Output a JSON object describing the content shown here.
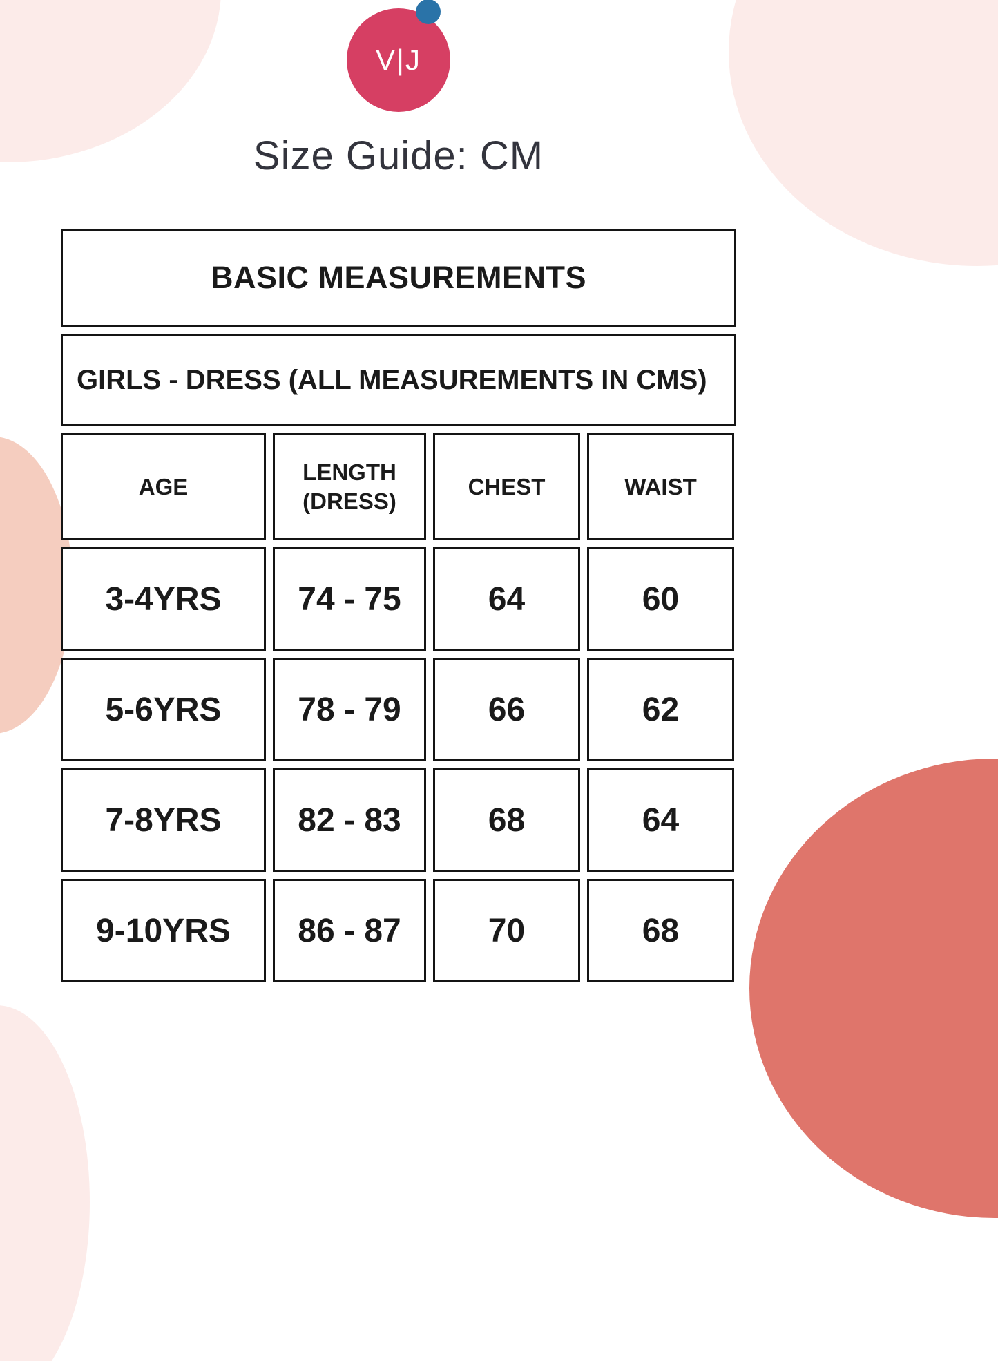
{
  "logo": {
    "text": "V|J",
    "circle_color": "#d63f63",
    "dot_color": "#2a73a8"
  },
  "title": "Size Guide: CM",
  "table": {
    "title": "BASIC MEASUREMENTS",
    "subtitle": "GIRLS - DRESS (ALL MEASUREMENTS IN CMS)",
    "columns": [
      "AGE",
      "LENGTH (DRESS)",
      "CHEST",
      "WAIST"
    ],
    "rows": [
      [
        "3-4YRS",
        "74 - 75",
        "64",
        "60"
      ],
      [
        "5-6YRS",
        "78 - 79",
        "66",
        "62"
      ],
      [
        "7-8YRS",
        "82 - 83",
        "68",
        "64"
      ],
      [
        "9-10YRS",
        "86 - 87",
        "70",
        "68"
      ]
    ]
  },
  "colors": {
    "brand_pink": "#d63f63",
    "accent_blue": "#2a73a8",
    "blob_light_pink": "#fcebe9",
    "blob_peach": "#f5cdbf",
    "blob_salmon": "#df756b",
    "text_dark": "#1a1a1a"
  }
}
